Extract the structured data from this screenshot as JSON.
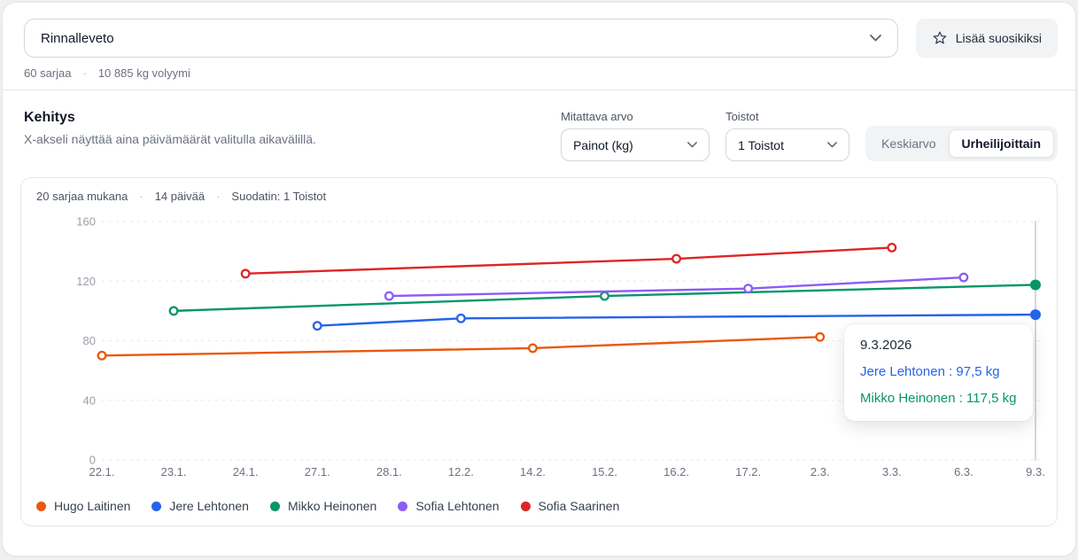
{
  "header": {
    "exercise_select": {
      "value": "Rinnalleveto"
    },
    "favorite_button_label": "Lisää suosikiksi",
    "stats": [
      "60 sarjaa",
      "10 885 kg volyymi"
    ]
  },
  "section": {
    "title": "Kehitys",
    "subtitle": "X-akseli näyttää aina päivämäärät valitulla aikavälillä.",
    "controls": {
      "measure_label": "Mitattava arvo",
      "measure_value": "Painot (kg)",
      "reps_label": "Toistot",
      "reps_value": "1 Toistot",
      "view_toggle": {
        "options": [
          "Keskiarvo",
          "Urheilijoittain"
        ],
        "active": "Urheilijoittain"
      }
    }
  },
  "chart_meta": [
    "20 sarjaa mukana",
    "14 päivää",
    "Suodatin: 1 Toistot"
  ],
  "chart_data": {
    "type": "line",
    "title": "Kehitys",
    "x": [
      "22.1.",
      "23.1.",
      "24.1.",
      "27.1.",
      "28.1.",
      "12.2.",
      "14.2.",
      "15.2.",
      "16.2.",
      "17.2.",
      "2.3.",
      "3.3.",
      "6.3.",
      "9.3."
    ],
    "y_ticks": [
      0,
      40,
      80,
      120,
      160
    ],
    "ylim": [
      0,
      160
    ],
    "grid": "dashed-horizontal",
    "legend_position": "bottom-left",
    "crosshair_x_index": 13,
    "series": [
      {
        "name": "Hugo Laitinen",
        "color": "#ea580c",
        "points": [
          {
            "xi": 0,
            "y": 70
          },
          {
            "xi": 6,
            "y": 75
          },
          {
            "xi": 10,
            "y": 82.5
          }
        ]
      },
      {
        "name": "Jere Lehtonen",
        "color": "#2563eb",
        "points": [
          {
            "xi": 3,
            "y": 90
          },
          {
            "xi": 5,
            "y": 95
          },
          {
            "xi": 13,
            "y": 97.5,
            "filled": true
          }
        ]
      },
      {
        "name": "Mikko Heinonen",
        "color": "#059669",
        "points": [
          {
            "xi": 1,
            "y": 100
          },
          {
            "xi": 7,
            "y": 110
          },
          {
            "xi": 13,
            "y": 117.5,
            "filled": true
          }
        ]
      },
      {
        "name": "Sofia Lehtonen",
        "color": "#8b5cf6",
        "points": [
          {
            "xi": 4,
            "y": 110
          },
          {
            "xi": 9,
            "y": 115
          },
          {
            "xi": 12,
            "y": 122.5
          }
        ]
      },
      {
        "name": "Sofia Saarinen",
        "color": "#dc2626",
        "points": [
          {
            "xi": 2,
            "y": 125
          },
          {
            "xi": 8,
            "y": 135
          },
          {
            "xi": 11,
            "y": 142.5
          }
        ]
      }
    ],
    "tooltip": {
      "title": "9.3.2026",
      "entries": [
        {
          "text": "Jere Lehtonen : 97,5 kg",
          "color": "#2563eb"
        },
        {
          "text": "Mikko Heinonen : 117,5 kg",
          "color": "#059669"
        }
      ]
    }
  },
  "axis_colors": {
    "tick_label": "#9aa0a8",
    "x_label": "#6b7280",
    "grid": "#e6e8eb",
    "crosshair": "#d5d7db"
  }
}
